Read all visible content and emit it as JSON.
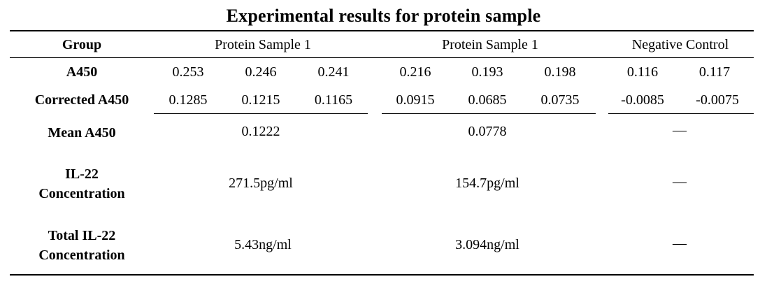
{
  "title": "Experimental results for protein sample",
  "header": {
    "group_label": "Group",
    "col1": "Protein Sample 1",
    "col2": "Protein Sample 1",
    "col3": "Negative Control"
  },
  "rows": {
    "a450": {
      "label": "A450",
      "values": [
        "0.253",
        "0.246",
        "0.241",
        "0.216",
        "0.193",
        "0.198",
        "0.116",
        "0.117"
      ]
    },
    "corrected": {
      "label": "Corrected A450",
      "values": [
        "0.1285",
        "0.1215",
        "0.1165",
        "0.0915",
        "0.0685",
        "0.0735",
        "-0.0085",
        "-0.0075"
      ]
    },
    "mean": {
      "label": "Mean A450",
      "values": [
        "0.1222",
        "0.0778",
        "—"
      ]
    },
    "il22": {
      "label_line1": "IL-22",
      "label_line2": "Concentration",
      "values": [
        "271.5pg/ml",
        "154.7pg/ml",
        "—"
      ]
    },
    "total": {
      "label_line1": "Total IL-22",
      "label_line2": "Concentration",
      "values": [
        "5.43ng/ml",
        "3.094ng/ml",
        "—"
      ]
    }
  }
}
